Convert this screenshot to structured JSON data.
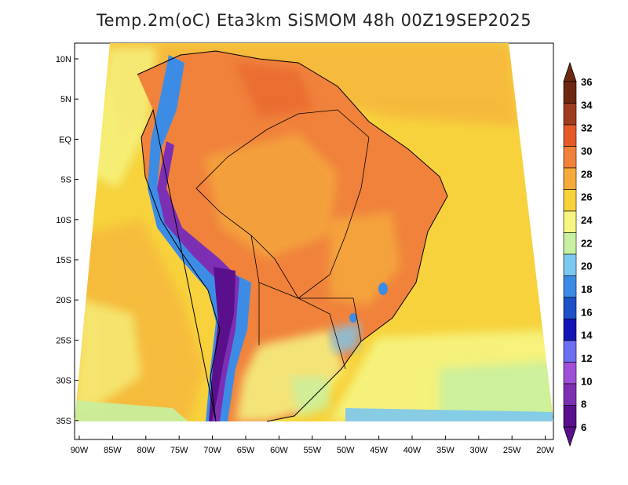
{
  "title": "Temp.2m(oC) Eta3km SiSMOM 48h 00Z19SEP2025",
  "lat_labels": [
    "10N",
    "5N",
    "EQ",
    "5S",
    "10S",
    "15S",
    "20S",
    "25S",
    "30S",
    "35S"
  ],
  "lon_labels": [
    "90W",
    "85W",
    "80W",
    "75W",
    "70W",
    "65W",
    "60W",
    "55W",
    "50W",
    "45W",
    "40W",
    "35W",
    "30W",
    "25W",
    "20W"
  ],
  "colorbar": {
    "labels": [
      "6",
      "8",
      "10",
      "12",
      "14",
      "16",
      "18",
      "20",
      "22",
      "24",
      "26",
      "28",
      "30",
      "32",
      "34",
      "36"
    ],
    "colors": [
      "#5a0f8c",
      "#7d2fb4",
      "#a050d8",
      "#6e6ef0",
      "#1414b4",
      "#1e50c8",
      "#3c8ce6",
      "#7cc8f0",
      "#c8f0a0",
      "#f5f582",
      "#f7d23c",
      "#f5aa3c",
      "#f0823c",
      "#e65a28",
      "#a03c1e",
      "#6e280f"
    ]
  }
}
